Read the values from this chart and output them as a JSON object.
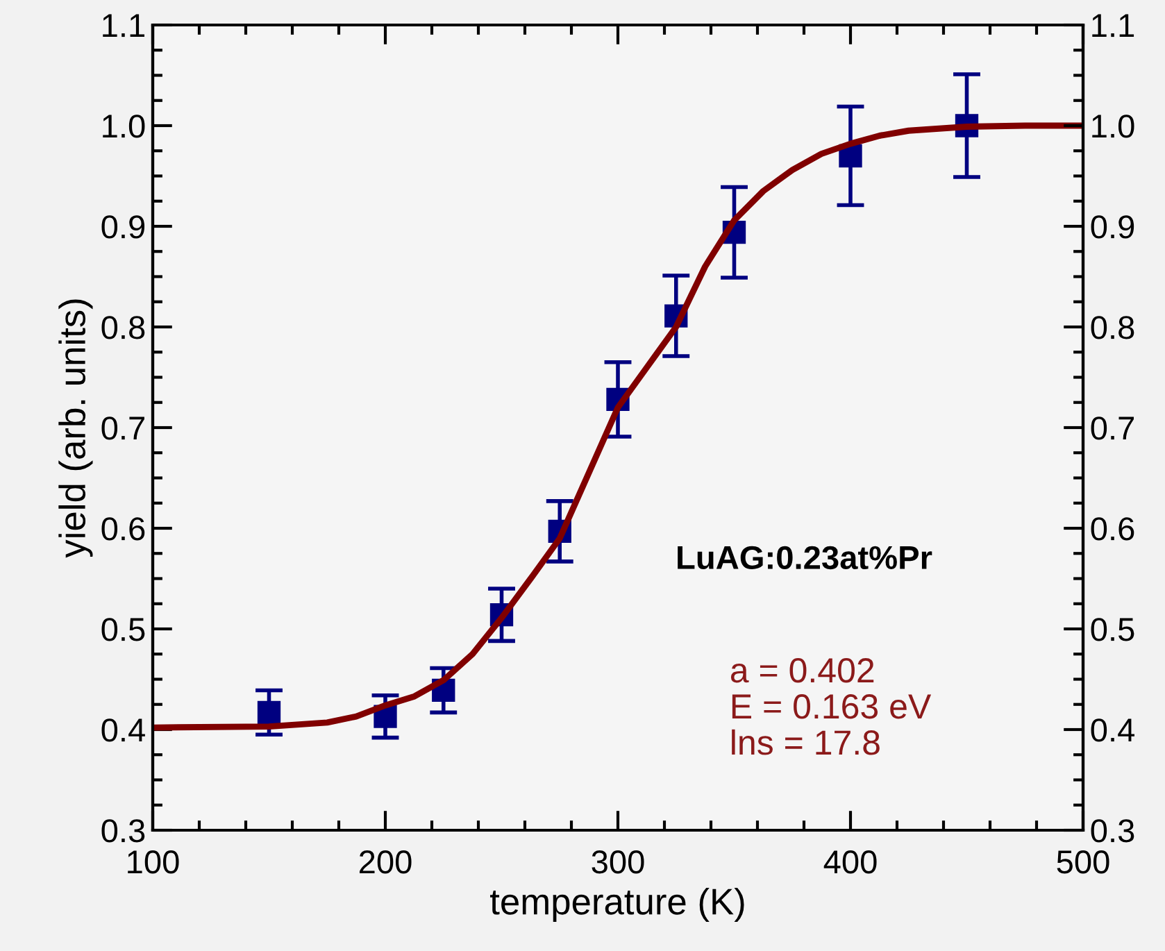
{
  "chart_data": {
    "type": "scatter",
    "xlabel": "temperature (K)",
    "ylabel": "yield (arb. units)",
    "xlim": [
      100,
      500
    ],
    "xticks": [
      100,
      200,
      300,
      400,
      500
    ],
    "ylim": [
      0.3,
      1.1
    ],
    "yticks": [
      0.3,
      0.4,
      0.5,
      0.6,
      0.7,
      0.8,
      0.9,
      {
        "value": 1,
        "label": "1.0"
      },
      1.1
    ],
    "y2lim": [
      0.3,
      1.1
    ],
    "y2ticks": [
      0.3,
      0.4,
      0.5,
      0.6,
      0.7,
      0.8,
      0.9,
      {
        "value": 1,
        "label": "1.0"
      },
      1.1
    ],
    "grid": false,
    "legend": false,
    "series": [
      {
        "color": "#000080",
        "marker": "square",
        "x": [
          150,
          200,
          225,
          250,
          275,
          300,
          325,
          350,
          400,
          450
        ],
        "values": [
          0.417,
          0.413,
          0.439,
          0.514,
          0.597,
          0.728,
          0.811,
          0.894,
          0.97,
          1.0
        ],
        "errors": [
          0.022,
          0.021,
          0.022,
          0.026,
          0.03,
          0.037,
          0.04,
          0.045,
          0.049,
          0.051
        ]
      },
      {
        "type": "line",
        "color": "#800000",
        "marker": "none",
        "line_style": "solid",
        "x": [
          100,
          150,
          175,
          187.5,
          200,
          212.5,
          225,
          237.5,
          250,
          262.5,
          275,
          287.5,
          300,
          312.5,
          325,
          337.5,
          350,
          362.5,
          375,
          387.5,
          400,
          412.5,
          425,
          450,
          475,
          500
        ],
        "values": [
          0.402,
          0.403,
          0.407,
          0.413,
          0.424,
          0.433,
          0.449,
          0.475,
          0.511,
          0.55,
          0.59,
          0.655,
          0.72,
          0.76,
          0.8,
          0.86,
          0.906,
          0.935,
          0.956,
          0.972,
          0.982,
          0.99,
          0.995,
          0.999,
          1.0,
          1.0
        ]
      }
    ],
    "annotations": [
      "LuAG:0.23at%Pr",
      "a = 0.402\nE = 0.163 eV\nlns = 17.8"
    ]
  }
}
